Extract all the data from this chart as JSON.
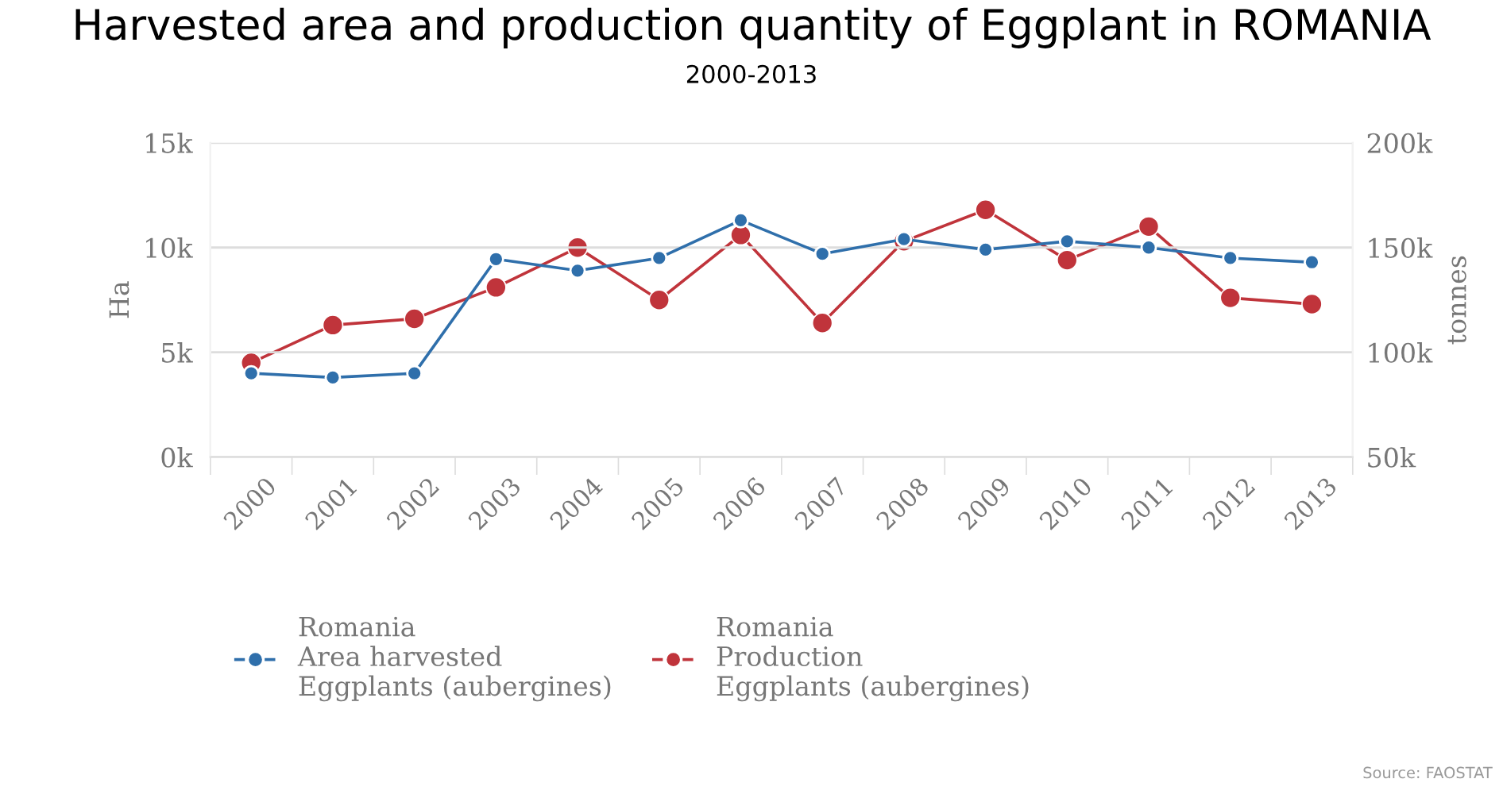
{
  "chart_data": {
    "type": "line",
    "title": "Harvested area and production quantity of Eggplant in ROMANIA",
    "subtitle": "2000-2013",
    "ylabel": "Ha",
    "y2label": "tonnes",
    "categories": [
      "2000",
      "2001",
      "2002",
      "2003",
      "2004",
      "2005",
      "2006",
      "2007",
      "2008",
      "2009",
      "2010",
      "2011",
      "2012",
      "2013"
    ],
    "series": [
      {
        "name": "Romania\nArea harvested\nEggplants (aubergines)",
        "color": "#2f6fab",
        "values": [
          4.0,
          3.8,
          4.0,
          9.45,
          8.9,
          9.5,
          11.3,
          9.7,
          10.4,
          9.9,
          10.3,
          10.0,
          9.5,
          9.3
        ]
      },
      {
        "name": "Romania\nProduction\nEggplants (aubergines)",
        "color": "#c0343b",
        "axis": "y2",
        "values": [
          95,
          113,
          116,
          131,
          150,
          125,
          156,
          114,
          153,
          168,
          144,
          160,
          126,
          123
        ]
      }
    ],
    "ylim": [
      0,
      15
    ],
    "yticks": [
      {
        "value": 0,
        "label": "0k"
      },
      {
        "value": 5,
        "label": "5k"
      },
      {
        "value": 10,
        "label": "10k"
      },
      {
        "value": 15,
        "label": "15k"
      }
    ],
    "y2lim": [
      50,
      200
    ],
    "y2ticks": [
      {
        "value": 50,
        "label": "50k"
      },
      {
        "value": 100,
        "label": "100k"
      },
      {
        "value": 150,
        "label": "150k"
      },
      {
        "value": 200,
        "label": "200k"
      }
    ],
    "grid": "y",
    "legend": "bottom",
    "marker": "circle",
    "line_style": "solid",
    "annotations": [
      "Source: FAOSTAT"
    ]
  }
}
